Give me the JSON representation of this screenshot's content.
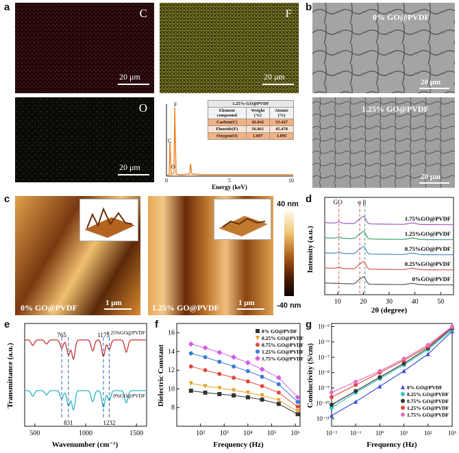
{
  "panels": {
    "a": "a",
    "b": "b",
    "c": "c",
    "d": "d",
    "e": "e",
    "f": "f",
    "g": "g"
  },
  "edx": {
    "maps": [
      {
        "element": "C",
        "scale": "20 μm",
        "color": "#c8324a"
      },
      {
        "element": "F",
        "scale": "20 μm",
        "color": "#d6d24a"
      },
      {
        "element": "O",
        "scale": "20 μm",
        "color": "#c8c86a"
      }
    ],
    "spectrum": {
      "xlabel": "Energy (keV)",
      "ticks": [
        "0",
        "5",
        "10"
      ],
      "peaks": [
        "C",
        "O",
        "F"
      ],
      "table": {
        "title": "1.25%-GO@PVDF",
        "headers": [
          "Element compound",
          "Weight (%)",
          "Atomic (%)"
        ],
        "rows": [
          [
            "Carbon(C)",
            "42.042",
            "53.427"
          ],
          [
            "Fluoride(F)",
            "56.861",
            "45.478"
          ],
          [
            "Oxygen(O)",
            "1.097",
            "1.095"
          ]
        ]
      }
    }
  },
  "sem": {
    "top_label": "0% GO@PVDF",
    "bottom_label": "1.25% GO@PVDF",
    "scale": "20 μm"
  },
  "afm": {
    "left_label": "0% GO@PVDF",
    "right_label": "1.25% GO@PVDF",
    "scale": "1 μm",
    "colorbar_max": "40 nm",
    "colorbar_min": "-40 nm"
  },
  "chart_data": [
    {
      "id": "d",
      "type": "line",
      "xlabel": "2θ (degree)",
      "ylabel": "Intensity (a.u.)",
      "xlim": [
        5,
        55
      ],
      "xticks": [
        10,
        20,
        30,
        40,
        50
      ],
      "markers": [
        {
          "label": "GO",
          "x": 10.5
        },
        {
          "label": "α",
          "x": 18.6
        },
        {
          "label": "β",
          "x": 20.6
        }
      ],
      "series": [
        {
          "name": "0%GO@PVDF",
          "color": "#555555"
        },
        {
          "name": "0.25%GO@PVDF",
          "color": "#d9534f"
        },
        {
          "name": "0.75%GO@PVDF",
          "color": "#4a86c5"
        },
        {
          "name": "1.25%GO@PVDF",
          "color": "#3aa06a"
        },
        {
          "name": "1.75%GO@PVDF",
          "color": "#9b59b6"
        }
      ]
    },
    {
      "id": "e",
      "type": "line",
      "xlabel": "Wavenumber (cm⁻¹)",
      "ylabel": "Transmittance (a.u.)",
      "xlim": [
        400,
        1600
      ],
      "xticks": [
        500,
        1000,
        1500
      ],
      "annotations": [
        {
          "text": "765",
          "x": 765
        },
        {
          "text": "831",
          "x": 831
        },
        {
          "text": "1175",
          "x": 1175
        },
        {
          "text": "1232",
          "x": 1232
        }
      ],
      "series": [
        {
          "name": "1.25%GO@PVDF",
          "color": "#c9302c"
        },
        {
          "name": "0%GO@PVDF",
          "color": "#27b3c4"
        }
      ]
    },
    {
      "id": "f",
      "type": "scatter",
      "xlabel": "Frequency (Hz)",
      "ylabel": "Dielectric Constant",
      "xlog": true,
      "xlim": [
        1,
        6.2
      ],
      "ylim": [
        6,
        17
      ],
      "xticks": [
        "10²",
        "10³",
        "10⁴",
        "10⁵",
        "10⁶"
      ],
      "yticks": [
        8,
        10,
        12,
        14,
        16
      ],
      "series": [
        {
          "name": "0% GO@PVDF",
          "color": "#333333",
          "marker": "square",
          "values": [
            9.8,
            9.6,
            9.45,
            9.3,
            9.1,
            8.85,
            8.4,
            7.3
          ]
        },
        {
          "name": "0.25% GO@PVDF",
          "color": "#e6a020",
          "marker": "triangle-down",
          "values": [
            10.6,
            10.3,
            10.1,
            9.85,
            9.6,
            9.3,
            8.8,
            7.6
          ]
        },
        {
          "name": "0.75% GO@PVDF",
          "color": "#e04a3a",
          "marker": "circle",
          "values": [
            12.4,
            12.0,
            11.6,
            11.2,
            10.8,
            10.3,
            9.6,
            8.1
          ]
        },
        {
          "name": "1.25% GO@PVDF",
          "color": "#3a7bd5",
          "marker": "circle",
          "values": [
            13.8,
            13.4,
            12.9,
            12.4,
            11.9,
            11.3,
            10.5,
            8.6
          ]
        },
        {
          "name": "1.75% GO@PVDF",
          "color": "#d35ee0",
          "marker": "diamond",
          "values": [
            14.8,
            14.4,
            13.9,
            13.4,
            12.8,
            12.1,
            11.2,
            9.1
          ]
        }
      ]
    },
    {
      "id": "g",
      "type": "scatter",
      "xlabel": "Frequency (Hz)",
      "ylabel": "Conductivity (S/cm)",
      "xlog": true,
      "ylog": true,
      "xlim": [
        -2,
        3
      ],
      "ylim": [
        -11.5,
        -4.8
      ],
      "xticks": [
        "10⁻²",
        "10⁻¹",
        "10⁰",
        "10¹",
        "10²",
        "10³"
      ],
      "yticks": [
        "10⁻¹¹",
        "10⁻¹⁰",
        "10⁻⁹",
        "10⁻⁸",
        "10⁻⁷",
        "10⁻⁶",
        "10⁻⁵"
      ],
      "series": [
        {
          "name": "0% GO@PVDF",
          "color": "#3a4fd5",
          "marker": "triangle",
          "values": [
            [
              -2,
              -10.8
            ],
            [
              -1,
              -9.9
            ],
            [
              0,
              -8.9
            ],
            [
              1,
              -7.9
            ],
            [
              2,
              -6.8
            ],
            [
              3,
              -5.3
            ]
          ]
        },
        {
          "name": "0.25% GO@PVDF",
          "color": "#2ec4c4",
          "marker": "circle",
          "values": [
            [
              -2,
              -10.3
            ],
            [
              -1,
              -9.3
            ],
            [
              0,
              -8.4
            ],
            [
              1,
              -7.5
            ],
            [
              2,
              -6.5
            ],
            [
              3,
              -5.2
            ]
          ]
        },
        {
          "name": "0.75% GO@PVDF",
          "color": "#333333",
          "marker": "circle",
          "values": [
            [
              -2,
              -10.1
            ],
            [
              -1,
              -9.2
            ],
            [
              0,
              -8.3
            ],
            [
              1,
              -7.4
            ],
            [
              2,
              -6.4
            ],
            [
              3,
              -5.1
            ]
          ]
        },
        {
          "name": "1.25% GO@PVDF",
          "color": "#e04a3a",
          "marker": "circle",
          "values": [
            [
              -2,
              -9.6
            ],
            [
              -1,
              -8.8
            ],
            [
              0,
              -8.0
            ],
            [
              1,
              -7.2
            ],
            [
              2,
              -6.3
            ],
            [
              3,
              -5.05
            ]
          ]
        },
        {
          "name": "1.75% GO@PVDF",
          "color": "#e070c0",
          "marker": "circle",
          "values": [
            [
              -2,
              -9.3
            ],
            [
              -1,
              -8.6
            ],
            [
              0,
              -7.9
            ],
            [
              1,
              -7.1
            ],
            [
              2,
              -6.2
            ],
            [
              3,
              -5.0
            ]
          ]
        }
      ]
    }
  ]
}
